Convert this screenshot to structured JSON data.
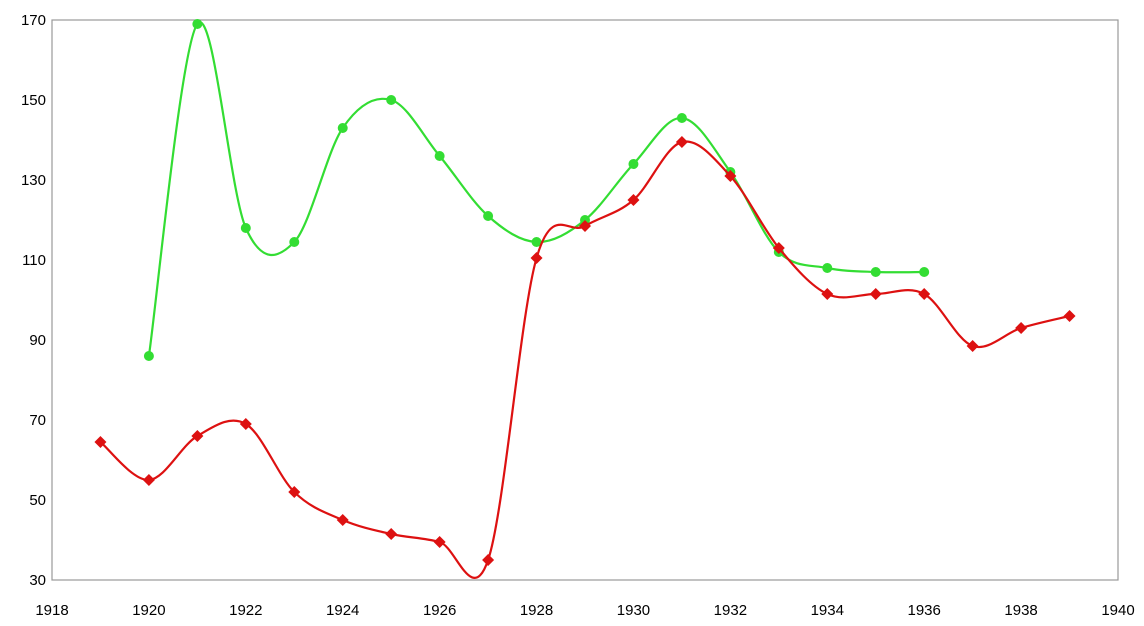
{
  "chart_data": {
    "type": "line",
    "title": "",
    "xlabel": "",
    "ylabel": "",
    "xlim": [
      1918,
      1940
    ],
    "ylim": [
      30,
      170
    ],
    "x_ticks": [
      "1918",
      "1920",
      "1922",
      "1924",
      "1926",
      "1928",
      "1930",
      "1932",
      "1934",
      "1936",
      "1938",
      "1940"
    ],
    "y_ticks": [
      "30",
      "50",
      "70",
      "90",
      "110",
      "130",
      "150",
      "170"
    ],
    "grid": false,
    "legend": "none",
    "series": [
      {
        "color": "#33dd33",
        "marker": "circle",
        "x": [
          1920,
          1921,
          1922,
          1923,
          1924,
          1925,
          1926,
          1927,
          1928,
          1929,
          1930,
          1931,
          1932,
          1933,
          1934,
          1935,
          1936
        ],
        "y": [
          86,
          169,
          118,
          114.5,
          143,
          150,
          136,
          121,
          114.5,
          120,
          134,
          145.5,
          132,
          112,
          108,
          107,
          107
        ]
      },
      {
        "color": "#dd1111",
        "marker": "diamond",
        "x": [
          1919,
          1920,
          1921,
          1922,
          1923,
          1924,
          1925,
          1926,
          1927,
          1928,
          1929,
          1930,
          1931,
          1932,
          1933,
          1934,
          1935,
          1936,
          1937,
          1938,
          1939
        ],
        "y": [
          64.5,
          55,
          66,
          69,
          52,
          45,
          41.5,
          39.5,
          35,
          110.5,
          118.5,
          125,
          139.5,
          131,
          113,
          101.5,
          101.5,
          101.5,
          88.5,
          93,
          96
        ]
      }
    ]
  }
}
